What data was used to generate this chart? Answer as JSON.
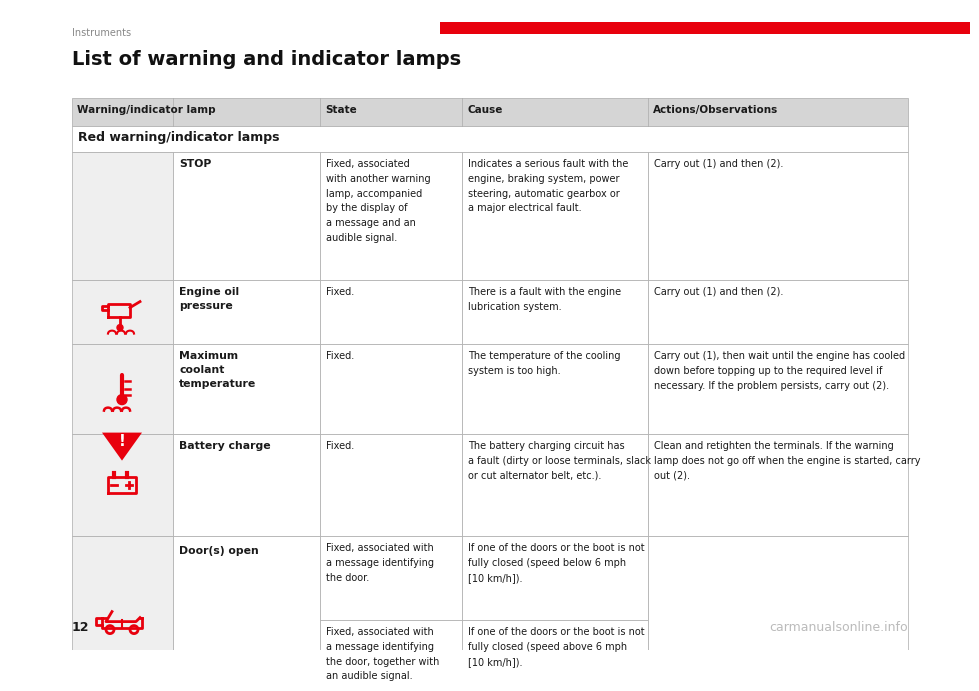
{
  "page_label": "Instruments",
  "page_number": "12",
  "title": "List of warning and indicator lamps",
  "red_bar_color": "#e8000d",
  "header_bg": "#d5d5d5",
  "header_cols": [
    "Warning/indicator lamp",
    "State",
    "Cause",
    "Actions/Observations"
  ],
  "section_header": "Red warning/indicator lamps",
  "rows": [
    {
      "icon": "stop",
      "name": "STOP",
      "state": "Fixed, associated\nwith another warning\nlamp, accompanied\nby the display of\na message and an\naudible signal.",
      "cause": "Indicates a serious fault with the\nengine, braking system, power\nsteering, automatic gearbox or\na major electrical fault.",
      "action": "Carry out (1) and then (2)."
    },
    {
      "icon": "oil",
      "name": "Engine oil\npressure",
      "state": "Fixed.",
      "cause": "There is a fault with the engine\nlubrication system.",
      "action": "Carry out (1) and then (2)."
    },
    {
      "icon": "coolant",
      "name": "Maximum\ncoolant\ntemperature",
      "state": "Fixed.",
      "cause": "The temperature of the cooling\nsystem is too high.",
      "action": "Carry out (1), then wait until the engine has cooled\ndown before topping up to the required level if\nnecessary. If the problem persists, carry out (2)."
    },
    {
      "icon": "battery",
      "name": "Battery charge",
      "state": "Fixed.",
      "cause": "The battery charging circuit has\na fault (dirty or loose terminals, slack\nor cut alternator belt, etc.).",
      "action": "Clean and retighten the terminals. If the warning\nlamp does not go off when the engine is started, carry\nout (2)."
    },
    {
      "icon": "door",
      "name": "Door(s) open",
      "state": "Fixed, associated with\na message identifying\nthe door.",
      "cause": "If one of the doors or the boot is not\nfully closed (speed below 6 mph\n[10 km/h]).",
      "action": "",
      "state2": "Fixed, associated with\na message identifying\nthe door, together with\nan audible signal.",
      "cause2": "If one of the doors or the boot is not\nfully closed (speed above 6 mph\n[10 km/h])."
    }
  ],
  "font_color": "#1a1a1a",
  "border_color": "#aaaaaa",
  "icon_color": "#e8000d",
  "bg_white": "#ffffff",
  "bg_light": "#efefef",
  "watermark": "carmanualsonline.info"
}
